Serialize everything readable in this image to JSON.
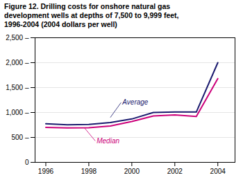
{
  "chart_data": {
    "type": "line",
    "title": "Figure 12. Drilling costs for onshore natural gas\ndevelopment wells at depths of 7,500 to 9,999 feet,\n1996-2004 (2004 dollars per well)",
    "x": [
      1996,
      1997,
      1998,
      1999,
      2000,
      2001,
      2002,
      2003,
      2004
    ],
    "series": [
      {
        "name": "Average",
        "color": "#1a1a6e",
        "values": [
          775,
          755,
          760,
          800,
          870,
          1000,
          1010,
          1010,
          2000
        ]
      },
      {
        "name": "Median",
        "color": "#cc007a",
        "values": [
          700,
          690,
          695,
          730,
          820,
          930,
          950,
          920,
          1680
        ]
      }
    ],
    "xlim": [
      1995.5,
      2004.8
    ],
    "xticks": [
      1996,
      1998,
      2000,
      2002,
      2004
    ],
    "ylim": [
      0,
      2500
    ],
    "yticks": [
      0,
      {
        "value": 500,
        "label": "500 –"
      },
      {
        "value": 1000,
        "label": "1,000 –"
      },
      {
        "value": 1500,
        "label": "1,500 –"
      },
      {
        "value": 2000,
        "label": "2,000 –"
      },
      {
        "value": 2500,
        "label": "2,500 –"
      }
    ],
    "grid": true,
    "annotations": [
      {
        "text": "Average",
        "x": 1999.5,
        "y": 1200,
        "arrow_x": 1999.0,
        "arrow_y": 900,
        "color": "#1a1a6e"
      },
      {
        "text": "Median",
        "x": 1998.3,
        "y": 430,
        "arrow_x": 1997.8,
        "arrow_y": 690,
        "color": "#cc007a"
      }
    ]
  }
}
